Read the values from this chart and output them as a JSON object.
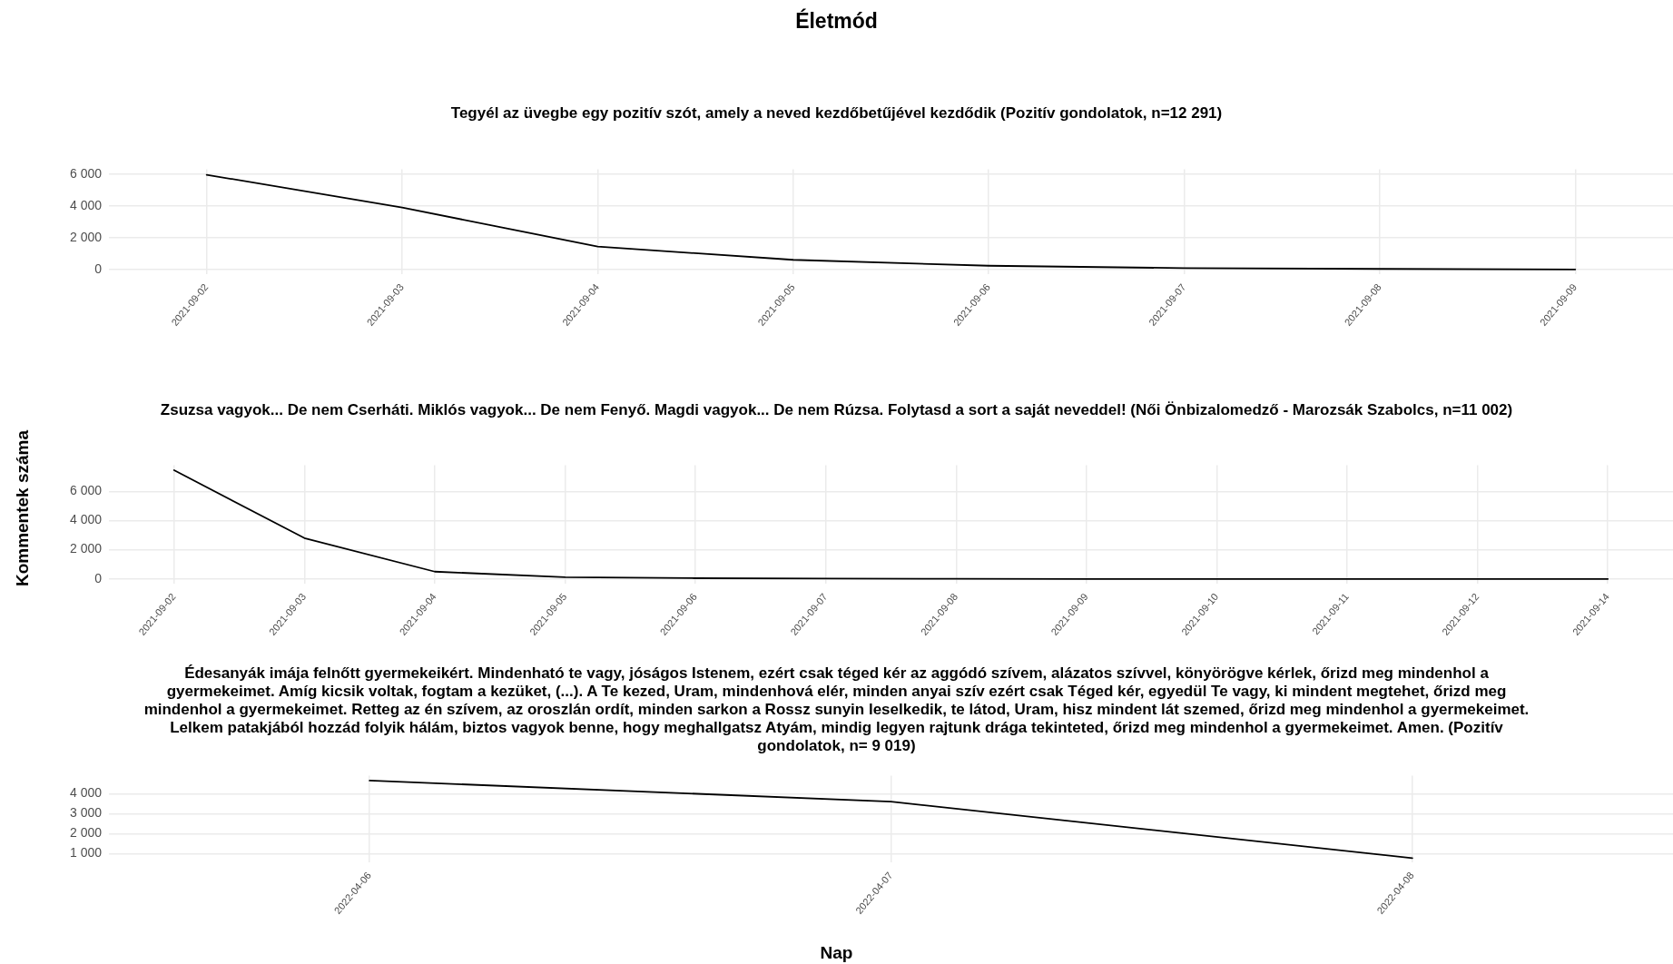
{
  "chart_data": [
    {
      "type": "line",
      "title": "Életmód",
      "subtitle": "Tegyél az üvegbe egy pozitív szót, amely a neved kezdőbetűjével kezdődik (Pozitív gondolatok, n=12 291)",
      "categories": [
        "2021-09-02",
        "2021-09-03",
        "2021-09-04",
        "2021-09-05",
        "2021-09-06",
        "2021-09-07",
        "2021-09-08",
        "2021-09-09"
      ],
      "series": [
        {
          "color": "#000000",
          "values": [
            5950,
            3900,
            1450,
            620,
            250,
            100,
            50,
            20
          ]
        }
      ],
      "ylim": [
        -300,
        6300
      ],
      "yticks": [
        {
          "value": 0,
          "label": "0"
        },
        {
          "value": 2000,
          "label": "2 000"
        },
        {
          "value": 4000,
          "label": "4 000"
        },
        {
          "value": 6000,
          "label": "6 000"
        }
      ],
      "grid": true,
      "legend": false,
      "marker": "none",
      "line_style": "solid"
    },
    {
      "type": "line",
      "subtitle": "Zsuzsa vagyok... De nem Cserháti. Miklós vagyok... De nem Fenyő. Magdi vagyok... De nem Rúzsa. Folytasd a sort a saját neveddel! (Női Önbizalomedző - Marozsák Szabolcs, n=11 002)",
      "ylabel": "Kommentek száma",
      "categories": [
        "2021-09-02",
        "2021-09-03",
        "2021-09-04",
        "2021-09-05",
        "2021-09-06",
        "2021-09-07",
        "2021-09-08",
        "2021-09-09",
        "2021-09-10",
        "2021-09-11",
        "2021-09-12",
        "2021-09-14"
      ],
      "series": [
        {
          "color": "#000000",
          "values": [
            7450,
            2800,
            500,
            120,
            50,
            20,
            10,
            0,
            0,
            0,
            0,
            0
          ]
        }
      ],
      "ylim": [
        -350,
        7800
      ],
      "yticks": [
        {
          "value": 0,
          "label": "0"
        },
        {
          "value": 2000,
          "label": "2 000"
        },
        {
          "value": 4000,
          "label": "4 000"
        },
        {
          "value": 6000,
          "label": "6 000"
        }
      ],
      "grid": true,
      "legend": false,
      "marker": "none",
      "line_style": "solid"
    },
    {
      "type": "line",
      "subtitle": "Édesanyák imája felnőtt gyermekeikért. Mindenható te vagy, jóságos Istenem, ezért csak téged kér az aggódó szívem, alázatos szívvel, könyörögve kérlek, őrizd meg mindenhol a gyermekeimet. Amíg kicsik voltak, fogtam a kezüket, (...). A Te kezed, Uram, mindenhová elér, minden anyai szív ezért csak Téged kér, egyedül Te vagy, ki mindent megtehet, őrizd meg mindenhol a gyermekeimet. Retteg az én szívem, az oroszlán ordít, minden sarkon a Rossz sunyin leselkedik, te látod, Uram, hisz mindent lát szemed, őrizd meg mindenhol a gyermekeimet. Lelkem patakjából hozzád folyik hálám, biztos vagyok benne, hogy meghallgatsz Atyám, mindig legyen rajtunk drága tekinteted, őrizd meg mindenhol a gyermekeimet. Amen. (Pozitív gondolatok, n= 9 019)",
      "xlabel": "Nap",
      "categories": [
        "2022-04-06",
        "2022-04-07",
        "2022-04-08"
      ],
      "series": [
        {
          "color": "#000000",
          "values": [
            4650,
            3600,
            780
          ]
        }
      ],
      "ylim": [
        550,
        4900
      ],
      "yticks": [
        {
          "value": 1000,
          "label": "1 000"
        },
        {
          "value": 2000,
          "label": "2 000"
        },
        {
          "value": 3000,
          "label": "3 000"
        },
        {
          "value": 4000,
          "label": "4 000"
        }
      ],
      "grid": true,
      "legend": false,
      "marker": "none",
      "line_style": "solid"
    }
  ]
}
